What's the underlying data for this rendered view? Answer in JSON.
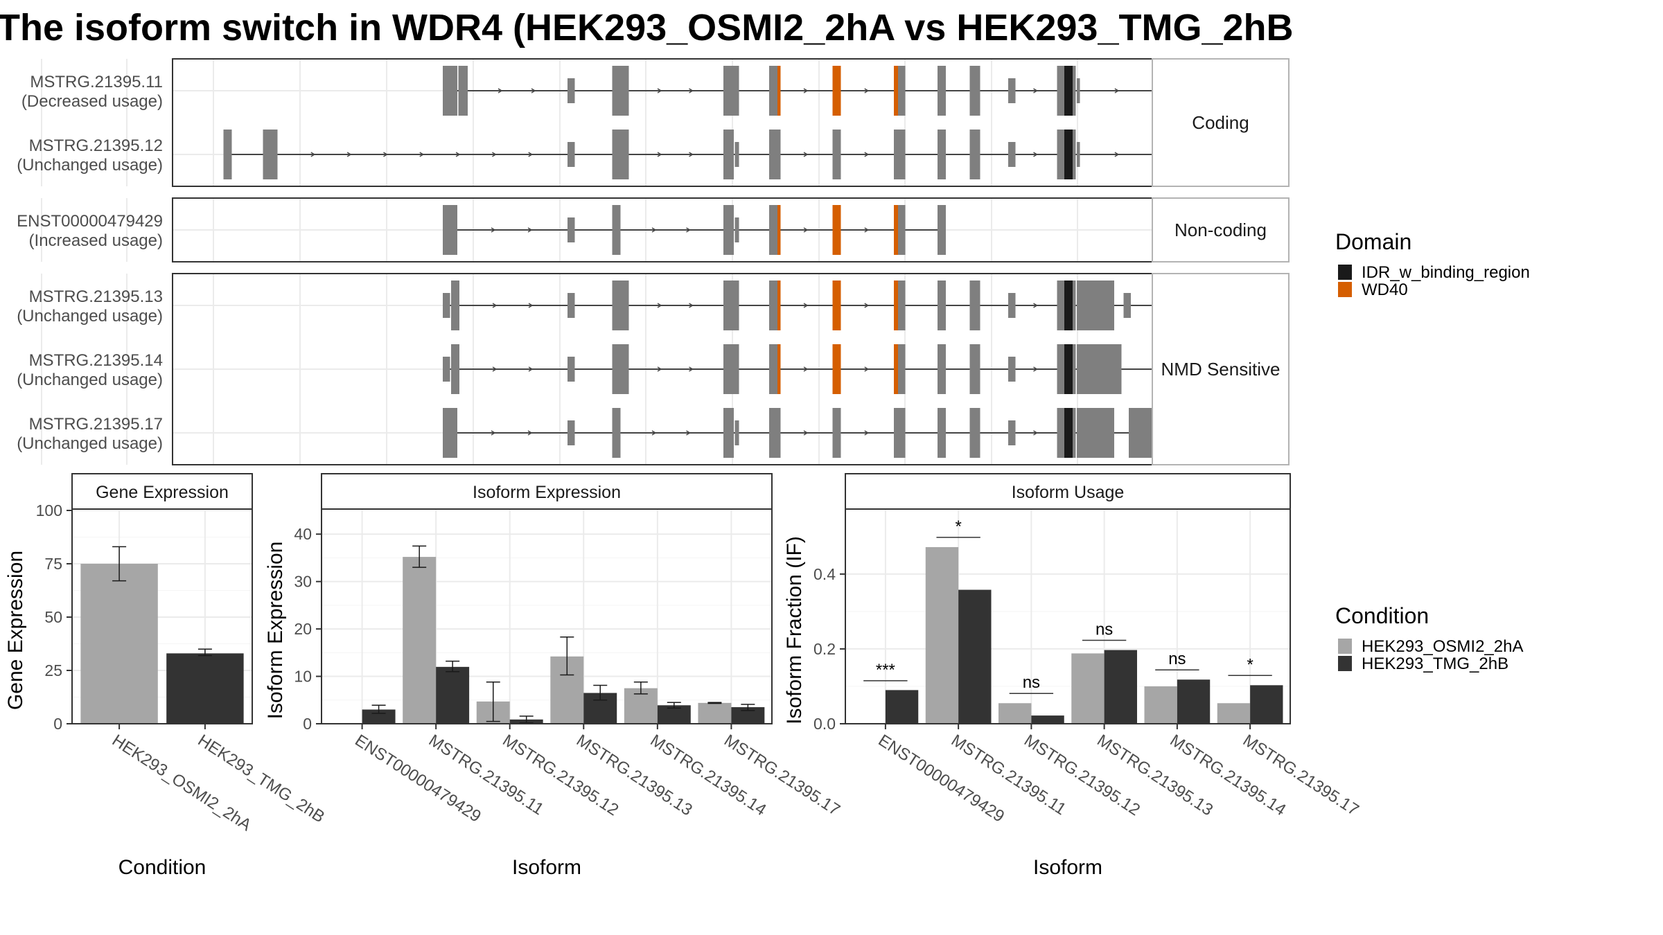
{
  "title": "The isoform switch in WDR4 (HEK293_OSMI2_2hA vs HEK293_TMG_2hB",
  "colors": {
    "exon": "#7f7f7f",
    "IDR_w_binding_region": "#1a1a1a",
    "WD40": "#d55e00",
    "cond1": "#a6a6a6",
    "cond2": "#333333",
    "grid": "#ebebeb",
    "frame": "#333333",
    "strip_border": "#b3b3b3"
  },
  "legends": {
    "domain": {
      "title": "Domain",
      "items": [
        {
          "label": "IDR_w_binding_region",
          "color_key": "IDR_w_binding_region"
        },
        {
          "label": "WD40",
          "color_key": "WD40"
        }
      ]
    },
    "condition": {
      "title": "Condition",
      "items": [
        {
          "label": "HEK293_OSMI2_2hA",
          "color_key": "cond1"
        },
        {
          "label": "HEK293_TMG_2hB",
          "color_key": "cond2"
        }
      ]
    }
  },
  "transcript_panels": [
    {
      "label": "Coding",
      "transcripts": [
        {
          "name": "MSTRG.21395.11",
          "usage": "(Decreased usage)",
          "exons": [
            [
              260,
              274
            ],
            [
              275,
              284
            ],
            [
              380,
              387
            ],
            [
              423,
              439
            ],
            [
              530,
              545
            ],
            [
              574,
              585
            ],
            [
              635,
              643
            ],
            [
              694,
              705
            ],
            [
              736,
              744
            ],
            [
              767,
              777
            ],
            [
              804,
              811
            ],
            [
              851,
              869
            ],
            [
              870,
              873
            ],
            [
              1018,
              1031
            ]
          ],
          "domains": [
            [
              582,
              585,
              "WD40"
            ],
            [
              635,
              643,
              "WD40"
            ],
            [
              694,
              698,
              "WD40"
            ],
            [
              858,
              866,
              "IDR_w_binding_region"
            ]
          ]
        },
        {
          "name": "MSTRG.21395.12",
          "usage": "(Unchanged usage)",
          "exons": [
            [
              49,
              57
            ],
            [
              87,
              101
            ],
            [
              380,
              387
            ],
            [
              423,
              439
            ],
            [
              530,
              540
            ],
            [
              541,
              545
            ],
            [
              574,
              585
            ],
            [
              635,
              643
            ],
            [
              694,
              705
            ],
            [
              736,
              744
            ],
            [
              767,
              777
            ],
            [
              804,
              811
            ],
            [
              851,
              869
            ],
            [
              870,
              873
            ],
            [
              1018,
              1031
            ]
          ],
          "domains": [
            [
              858,
              866,
              "IDR_w_binding_region"
            ]
          ]
        }
      ]
    },
    {
      "label": "Non-coding",
      "transcripts": [
        {
          "name": "ENST00000479429",
          "usage": "(Increased usage)",
          "exons": [
            [
              260,
              274
            ],
            [
              380,
              387
            ],
            [
              423,
              431
            ],
            [
              530,
              540
            ],
            [
              541,
              545
            ],
            [
              574,
              585
            ],
            [
              635,
              643
            ],
            [
              694,
              705
            ],
            [
              736,
              744
            ]
          ],
          "domains": [
            [
              582,
              585,
              "WD40"
            ],
            [
              635,
              643,
              "WD40"
            ],
            [
              694,
              698,
              "WD40"
            ]
          ]
        }
      ]
    },
    {
      "label": "NMD Sensitive",
      "transcripts": [
        {
          "name": "MSTRG.21395.13",
          "usage": "(Unchanged usage)",
          "exons": [
            [
              260,
              267
            ],
            [
              268,
              276
            ],
            [
              380,
              387
            ],
            [
              423,
              439
            ],
            [
              530,
              545
            ],
            [
              574,
              585
            ],
            [
              635,
              643
            ],
            [
              694,
              705
            ],
            [
              736,
              744
            ],
            [
              767,
              777
            ],
            [
              804,
              811
            ],
            [
              851,
              869
            ],
            [
              870,
              906
            ],
            [
              915,
              922
            ],
            [
              985,
              1025
            ]
          ],
          "domains": [
            [
              582,
              585,
              "WD40"
            ],
            [
              635,
              643,
              "WD40"
            ],
            [
              694,
              698,
              "WD40"
            ],
            [
              858,
              866,
              "IDR_w_binding_region"
            ]
          ]
        },
        {
          "name": "MSTRG.21395.14",
          "usage": "(Unchanged usage)",
          "exons": [
            [
              260,
              267
            ],
            [
              268,
              276
            ],
            [
              380,
              387
            ],
            [
              423,
              439
            ],
            [
              530,
              545
            ],
            [
              574,
              585
            ],
            [
              635,
              643
            ],
            [
              694,
              705
            ],
            [
              736,
              744
            ],
            [
              767,
              777
            ],
            [
              804,
              811
            ],
            [
              851,
              869
            ],
            [
              870,
              913
            ],
            [
              944,
              950
            ],
            [
              1000,
              1027
            ]
          ],
          "domains": [
            [
              582,
              585,
              "WD40"
            ],
            [
              635,
              643,
              "WD40"
            ],
            [
              694,
              698,
              "WD40"
            ],
            [
              858,
              866,
              "IDR_w_binding_region"
            ]
          ]
        },
        {
          "name": "MSTRG.21395.17",
          "usage": "(Unchanged usage)",
          "exons": [
            [
              260,
              274
            ],
            [
              380,
              387
            ],
            [
              423,
              431
            ],
            [
              530,
              540
            ],
            [
              541,
              545
            ],
            [
              574,
              585
            ],
            [
              635,
              643
            ],
            [
              694,
              705
            ],
            [
              736,
              744
            ],
            [
              767,
              777
            ],
            [
              804,
              811
            ],
            [
              851,
              869
            ],
            [
              870,
              906
            ],
            [
              920,
              942
            ],
            [
              958,
              965
            ],
            [
              976,
              1000
            ]
          ],
          "domains": [
            [
              858,
              866,
              "IDR_w_binding_region"
            ]
          ]
        }
      ]
    }
  ],
  "chart_data": [
    {
      "type": "bar",
      "title": "Gene Expression",
      "xlabel": "Condition",
      "ylabel": "Gene Expression",
      "ylim": [
        0,
        100
      ],
      "yticks": [
        0,
        25,
        50,
        75,
        100
      ],
      "categories": [
        "HEK293_OSMI2_2hA",
        "HEK293_TMG_2hB"
      ],
      "values": [
        75,
        33
      ],
      "err_low": [
        67,
        32
      ],
      "err_high": [
        83,
        35
      ],
      "color_keys": [
        "cond1",
        "cond2"
      ]
    },
    {
      "type": "bar",
      "title": "Isoform Expression",
      "xlabel": "Isoform",
      "ylabel": "Isoform Expression",
      "ylim": [
        0,
        45
      ],
      "yticks": [
        0,
        10,
        20,
        30,
        40
      ],
      "categories": [
        "ENST00000479429",
        "MSTRG.21395.11",
        "MSTRG.21395.12",
        "MSTRG.21395.13",
        "MSTRG.21395.14",
        "MSTRG.21395.17"
      ],
      "series": [
        {
          "name": "HEK293_OSMI2_2hA",
          "color_key": "cond1",
          "values": [
            0,
            35.2,
            4.7,
            14.2,
            7.5,
            4.4
          ],
          "err_low": [
            0,
            33.0,
            0.5,
            10.3,
            6.3,
            4.3
          ],
          "err_high": [
            0,
            37.5,
            8.8,
            18.3,
            8.8,
            4.5
          ]
        },
        {
          "name": "HEK293_TMG_2hB",
          "color_key": "cond2",
          "values": [
            3.0,
            12.0,
            0.9,
            6.5,
            3.9,
            3.5
          ],
          "err_low": [
            2.2,
            11.0,
            0.2,
            5.0,
            3.3,
            2.8
          ],
          "err_high": [
            3.9,
            13.2,
            1.6,
            8.1,
            4.5,
            4.1
          ]
        }
      ]
    },
    {
      "type": "bar",
      "title": "Isoform Usage",
      "xlabel": "Isoform",
      "ylabel": "Isoform Fraction (IF)",
      "ylim": [
        0,
        0.57
      ],
      "yticks": [
        0.0,
        0.2,
        0.4
      ],
      "ytick_labels": [
        "0.0",
        "0.2",
        "0.4"
      ],
      "categories": [
        "ENST00000479429",
        "MSTRG.21395.11",
        "MSTRG.21395.12",
        "MSTRG.21395.13",
        "MSTRG.21395.14",
        "MSTRG.21395.17"
      ],
      "series": [
        {
          "name": "HEK293_OSMI2_2hA",
          "color_key": "cond1",
          "values": [
            0.0,
            0.472,
            0.055,
            0.188,
            0.1,
            0.055
          ]
        },
        {
          "name": "HEK293_TMG_2hB",
          "color_key": "cond2",
          "values": [
            0.09,
            0.358,
            0.022,
            0.197,
            0.118,
            0.103
          ]
        }
      ],
      "annotations": [
        {
          "category": "ENST00000479429",
          "label": "***",
          "y": 0.115
        },
        {
          "category": "MSTRG.21395.11",
          "label": "*",
          "y": 0.498
        },
        {
          "category": "MSTRG.21395.12",
          "label": "ns",
          "y": 0.081
        },
        {
          "category": "MSTRG.21395.13",
          "label": "ns",
          "y": 0.223
        },
        {
          "category": "MSTRG.21395.14",
          "label": "ns",
          "y": 0.144
        },
        {
          "category": "MSTRG.21395.17",
          "label": "*",
          "y": 0.129
        }
      ]
    }
  ]
}
